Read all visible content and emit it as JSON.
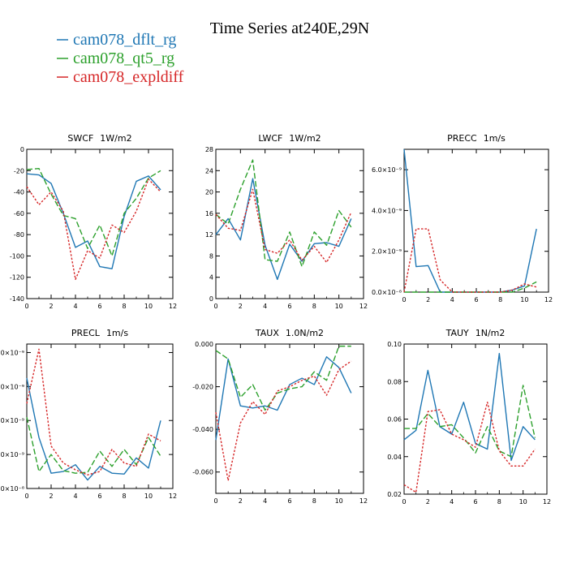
{
  "page": {
    "title": "Time Series at240E,29N"
  },
  "legend": {
    "placement": "top-left",
    "entries": [
      {
        "name": "cam078_dflt_rg",
        "color": "#1f77b4",
        "dash": "solid"
      },
      {
        "name": "cam078_qt5_rg",
        "color": "#2ca02c",
        "dash": "dashed"
      },
      {
        "name": "cam078_expldiff",
        "color": "#d62728",
        "dash": "dotted"
      }
    ]
  },
  "chart_data": [
    {
      "type": "line",
      "title": "SWCF",
      "units": "1W/m2",
      "xlim": [
        0,
        12
      ],
      "ylim": [
        -140,
        0
      ],
      "xticks": [
        0,
        2,
        4,
        6,
        8,
        10,
        12
      ],
      "xtick_labels": [
        "0",
        "2",
        "4",
        "6",
        "8",
        "10",
        "12"
      ],
      "yticks": [
        -140,
        -120,
        -100,
        -80,
        -60,
        -40,
        -20,
        0
      ],
      "ytick_labels": [
        "-140",
        "-120",
        "-100",
        "-80",
        "-60",
        "-40",
        "-20",
        "0"
      ],
      "x": [
        0,
        1,
        2,
        3,
        4,
        5,
        6,
        7,
        8,
        9,
        10,
        11
      ],
      "series": [
        {
          "name": "cam078_dflt_rg",
          "values": [
            -23,
            -24,
            -32,
            -60,
            -92,
            -86,
            -110,
            -112,
            -63,
            -30,
            -25,
            -38
          ]
        },
        {
          "name": "cam078_qt5_rg",
          "values": [
            -19,
            -18,
            -42,
            -62,
            -65,
            -93,
            -71,
            -100,
            -60,
            -46,
            -27,
            -20
          ]
        },
        {
          "name": "cam078_expldiff",
          "values": [
            -35,
            -52,
            -40,
            -58,
            -122,
            -95,
            -102,
            -71,
            -78,
            -58,
            -28,
            -40
          ]
        }
      ]
    },
    {
      "type": "line",
      "title": "LWCF",
      "units": "1W/m2",
      "xlim": [
        0,
        12
      ],
      "ylim": [
        0,
        28
      ],
      "xticks": [
        0,
        2,
        4,
        6,
        8,
        10,
        12
      ],
      "xtick_labels": [
        "0",
        "2",
        "4",
        "6",
        "8",
        "10",
        "12"
      ],
      "yticks": [
        0,
        4,
        8,
        12,
        16,
        20,
        24,
        28
      ],
      "ytick_labels": [
        "0",
        "4",
        "8",
        "12",
        "16",
        "20",
        "24",
        "28"
      ],
      "x": [
        0,
        1,
        2,
        3,
        4,
        5,
        6,
        7,
        8,
        9,
        10,
        11
      ],
      "series": [
        {
          "name": "cam078_dflt_rg",
          "values": [
            12,
            15,
            11,
            22.5,
            10,
            3.6,
            10.2,
            7,
            10.3,
            10.5,
            9.8,
            15
          ]
        },
        {
          "name": "cam078_qt5_rg",
          "values": [
            15.8,
            14,
            20.5,
            26,
            7.3,
            7,
            12.5,
            6,
            12.5,
            10,
            16.5,
            13.4
          ]
        },
        {
          "name": "cam078_expldiff",
          "values": [
            15.8,
            13.2,
            12.8,
            20.5,
            9.2,
            8.5,
            11,
            7.2,
            9.8,
            6.8,
            11,
            16.2
          ]
        }
      ]
    },
    {
      "type": "line",
      "title": "PRECC",
      "units": "1m/s",
      "xlim": [
        0,
        12
      ],
      "ylim": [
        0,
        7e-09
      ],
      "xticks": [
        0,
        2,
        4,
        6,
        8,
        10,
        12
      ],
      "xtick_labels": [
        "0",
        "2",
        "4",
        "6",
        "8",
        "10",
        "12"
      ],
      "yticks": [
        0,
        2e-09,
        4e-09,
        6e-09
      ],
      "ytick_labels": [
        "0.0×10⁻⁸",
        "2.0×10⁻⁹",
        "4.0×10⁻⁹",
        "6.0×10⁻⁹"
      ],
      "x": [
        0,
        1,
        2,
        3,
        4,
        5,
        6,
        7,
        8,
        9,
        10,
        11
      ],
      "series": [
        {
          "name": "cam078_dflt_rg",
          "values": [
            7e-09,
            1.25e-09,
            1.3e-09,
            0,
            0,
            0,
            0,
            0,
            0,
            1e-10,
            3e-10,
            3.1e-09
          ]
        },
        {
          "name": "cam078_qt5_rg",
          "values": [
            0,
            0,
            0,
            0,
            0,
            0,
            0,
            0,
            0,
            0,
            2e-10,
            5e-10
          ]
        },
        {
          "name": "cam078_expldiff",
          "values": [
            0,
            3.1e-09,
            3.1e-09,
            6e-10,
            0,
            0,
            0,
            0,
            0,
            1e-10,
            4e-10,
            2.5e-10
          ]
        }
      ]
    },
    {
      "type": "line",
      "title": "PRECL",
      "units": "1m/s",
      "xlim": [
        0,
        12
      ],
      "ylim": [
        0,
        8.5e-09
      ],
      "xticks": [
        0,
        2,
        4,
        6,
        8,
        10,
        12
      ],
      "xtick_labels": [
        "0",
        "2",
        "4",
        "6",
        "8",
        "10",
        "12"
      ],
      "yticks": [
        0,
        2e-09,
        4e-09,
        6e-09,
        8e-09
      ],
      "ytick_labels": [
        ".0×10⁻⁸",
        ".0×10⁻⁹",
        ".0×10⁻⁹",
        ".0×10⁻⁹",
        ".0×10⁻⁹"
      ],
      "x": [
        0,
        1,
        2,
        3,
        4,
        5,
        6,
        7,
        8,
        9,
        10,
        11
      ],
      "series": [
        {
          "name": "cam078_dflt_rg",
          "values": [
            6.5e-09,
            3e-09,
            9e-10,
            1e-09,
            1.4e-09,
            5e-10,
            1.3e-09,
            9e-10,
            8.5e-10,
            1.8e-09,
            1.2e-09,
            4e-09
          ]
        },
        {
          "name": "cam078_qt5_rg",
          "values": [
            4.2e-09,
            1e-09,
            2e-09,
            1.05e-09,
            9e-10,
            9.5e-10,
            2.2e-09,
            1.3e-09,
            2.3e-09,
            1.4e-09,
            3e-09,
            1.9e-09
          ]
        },
        {
          "name": "cam078_expldiff",
          "values": [
            5e-09,
            8.2e-09,
            2.5e-09,
            1.5e-09,
            1.1e-09,
            8e-10,
            1e-09,
            2.3e-09,
            1.5e-09,
            1.3e-09,
            3.2e-09,
            2.8e-09
          ]
        }
      ]
    },
    {
      "type": "line",
      "title": "TAUX",
      "units": "1.0N/m2",
      "xlim": [
        0,
        12
      ],
      "ylim": [
        -0.07,
        0
      ],
      "xticks": [
        0,
        2,
        4,
        6,
        8,
        10,
        12
      ],
      "xtick_labels": [
        "0",
        "2",
        "4",
        "6",
        "8",
        "10",
        "12"
      ],
      "yticks": [
        -0.06,
        -0.04,
        -0.02,
        0
      ],
      "ytick_labels": [
        "-0.060",
        "-0.040",
        "-0.020",
        "0.000"
      ],
      "x": [
        0,
        1,
        2,
        3,
        4,
        5,
        6,
        7,
        8,
        9,
        10,
        11
      ],
      "series": [
        {
          "name": "cam078_dflt_rg",
          "values": [
            -0.045,
            -0.007,
            -0.029,
            -0.03,
            -0.029,
            -0.031,
            -0.019,
            -0.016,
            -0.019,
            -0.006,
            -0.011,
            -0.023
          ]
        },
        {
          "name": "cam078_qt5_rg",
          "values": [
            -0.003,
            -0.007,
            -0.025,
            -0.019,
            -0.031,
            -0.023,
            -0.021,
            -0.02,
            -0.013,
            -0.017,
            -0.001,
            -0.001
          ]
        },
        {
          "name": "cam078_expldiff",
          "values": [
            -0.032,
            -0.064,
            -0.037,
            -0.027,
            -0.033,
            -0.022,
            -0.02,
            -0.017,
            -0.015,
            -0.024,
            -0.012,
            -0.008
          ]
        }
      ]
    },
    {
      "type": "line",
      "title": "TAUY",
      "units": "1N/m2",
      "xlim": [
        0,
        12
      ],
      "ylim": [
        0.02,
        0.1
      ],
      "xticks": [
        0,
        2,
        4,
        6,
        8,
        10,
        12
      ],
      "xtick_labels": [
        "0",
        "2",
        "4",
        "6",
        "8",
        "10",
        "12"
      ],
      "yticks": [
        0.02,
        0.04,
        0.06,
        0.08,
        0.1
      ],
      "ytick_labels": [
        "0.02",
        "0.04",
        "0.06",
        "0.08",
        "0.10"
      ],
      "x": [
        0,
        1,
        2,
        3,
        4,
        5,
        6,
        7,
        8,
        9,
        10,
        11
      ],
      "series": [
        {
          "name": "cam078_dflt_rg",
          "values": [
            0.049,
            0.054,
            0.086,
            0.056,
            0.052,
            0.069,
            0.047,
            0.044,
            0.095,
            0.038,
            0.056,
            0.049
          ]
        },
        {
          "name": "cam078_qt5_rg",
          "values": [
            0.055,
            0.055,
            0.063,
            0.056,
            0.057,
            0.05,
            0.042,
            0.056,
            0.043,
            0.04,
            0.078,
            0.05
          ]
        },
        {
          "name": "cam078_expldiff",
          "values": [
            0.025,
            0.021,
            0.064,
            0.065,
            0.052,
            0.049,
            0.045,
            0.069,
            0.043,
            0.035,
            0.035,
            0.044
          ]
        }
      ]
    }
  ]
}
